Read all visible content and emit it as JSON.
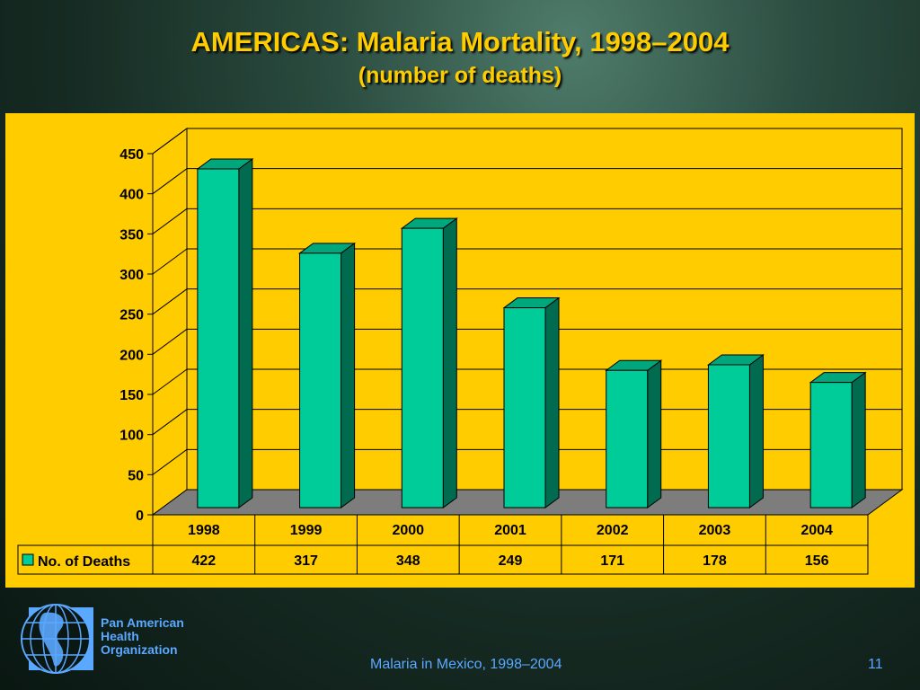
{
  "slide": {
    "title": "AMERICAS: Malaria Mortality, 1998–2004",
    "subtitle": "(number of deaths)",
    "footer_text": "Malaria in Mexico, 1998–2004",
    "page_number": "11"
  },
  "logo": {
    "line1": "Pan American",
    "line2": "Health",
    "line3": "Organization",
    "icon": "globe-americas-icon"
  },
  "colors": {
    "background": "#1a3329",
    "title": "#ffcc00",
    "panel": "#ffcc00",
    "bar_front": "#00cc99",
    "bar_side": "#006b4f",
    "bar_top": "#00a67c",
    "floor": "#7d7d7d",
    "footer": "#5aa8ff"
  },
  "chart_data": {
    "type": "bar",
    "categories": [
      "1998",
      "1999",
      "2000",
      "2001",
      "2002",
      "2003",
      "2004"
    ],
    "series": [
      {
        "name": "No. of Deaths",
        "values": [
          422,
          317,
          348,
          249,
          171,
          178,
          156
        ]
      }
    ],
    "value_labels": [
      "422",
      "317",
      "348",
      "249",
      "171",
      "178",
      "156"
    ],
    "ylim": [
      0,
      450
    ],
    "yticks": [
      0,
      50,
      100,
      150,
      200,
      250,
      300,
      350,
      400,
      450
    ],
    "grid": true,
    "three_d": true,
    "legend": "data-table-left"
  }
}
